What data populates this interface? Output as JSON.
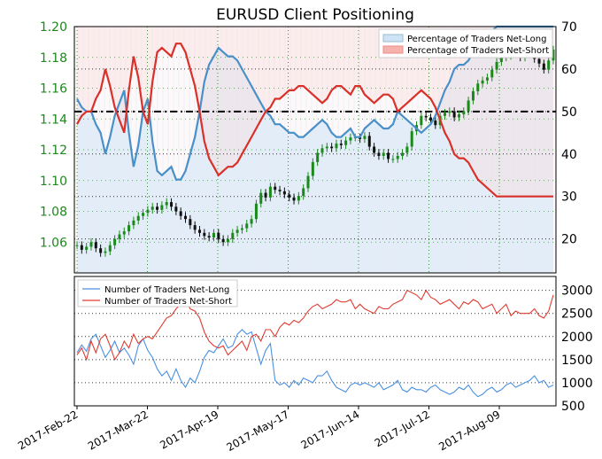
{
  "chart_data": [
    {
      "type": "line",
      "title": "EURUSD Client Positioning",
      "subtype": "candlestick price with sentiment percentage overlay",
      "x_ticks": [
        "2017-Feb-22",
        "2017-Mar-22",
        "2017-Apr-19",
        "2017-May-17",
        "2017-Jun-14",
        "2017-Jul-12",
        "2017-Aug-09"
      ],
      "price_axis": {
        "side": "left",
        "ylim": [
          1.04,
          1.2
        ],
        "ticks": [
          "1.06",
          "1.08",
          "1.10",
          "1.12",
          "1.14",
          "1.16",
          "1.18",
          "1.20"
        ]
      },
      "percent_axis": {
        "side": "right",
        "ylim": [
          12,
          70
        ],
        "ticks": [
          "20",
          "30",
          "40",
          "50",
          "60",
          "70"
        ]
      },
      "reference_line": 50,
      "legend": {
        "placement": "top-right",
        "entries": [
          "Percentage of Traders Net-Long",
          "Percentage of Traders Net-Short"
        ]
      },
      "price_close": [
        1.058,
        1.055,
        1.057,
        1.06,
        1.056,
        1.053,
        1.054,
        1.058,
        1.062,
        1.065,
        1.067,
        1.071,
        1.074,
        1.077,
        1.079,
        1.081,
        1.083,
        1.081,
        1.084,
        1.086,
        1.083,
        1.08,
        1.077,
        1.075,
        1.071,
        1.068,
        1.066,
        1.064,
        1.063,
        1.066,
        1.062,
        1.06,
        1.062,
        1.066,
        1.068,
        1.069,
        1.072,
        1.075,
        1.085,
        1.092,
        1.089,
        1.096,
        1.094,
        1.093,
        1.091,
        1.089,
        1.087,
        1.09,
        1.095,
        1.103,
        1.112,
        1.118,
        1.121,
        1.122,
        1.121,
        1.124,
        1.123,
        1.126,
        1.128,
        1.128,
        1.127,
        1.129,
        1.122,
        1.118,
        1.116,
        1.118,
        1.114,
        1.114,
        1.116,
        1.118,
        1.122,
        1.132,
        1.136,
        1.142,
        1.141,
        1.139,
        1.136,
        1.142,
        1.144,
        1.145,
        1.141,
        1.143,
        1.145,
        1.152,
        1.158,
        1.163,
        1.165,
        1.167,
        1.172,
        1.177,
        1.18,
        1.181,
        1.186,
        1.183,
        1.18,
        1.184,
        1.186,
        1.179,
        1.176,
        1.172,
        1.178,
        1.185
      ],
      "net_long_pct": [
        53,
        51,
        50,
        50,
        47,
        45,
        40,
        44,
        49,
        52,
        55,
        45,
        37,
        42,
        50,
        53,
        43,
        36,
        35,
        36,
        37,
        34,
        34,
        36,
        40,
        44,
        50,
        57,
        61,
        63,
        65,
        64,
        63,
        63,
        62,
        60,
        58,
        56,
        54,
        52,
        50,
        49,
        47,
        47,
        46,
        45,
        45,
        44,
        44,
        45,
        46,
        47,
        48,
        47,
        45,
        44,
        44,
        45,
        46,
        44,
        44,
        46,
        47,
        48,
        47,
        46,
        46,
        47,
        50,
        49,
        48,
        47,
        46,
        45,
        46,
        47,
        49,
        52,
        55,
        57,
        60,
        61,
        61,
        62,
        64,
        66,
        67,
        68,
        69,
        70,
        70,
        70,
        70,
        70,
        70,
        70,
        70,
        70,
        70,
        70,
        70,
        70
      ],
      "net_short_pct": [
        47,
        49,
        50,
        50,
        53,
        55,
        60,
        56,
        51,
        48,
        45,
        55,
        63,
        58,
        50,
        47,
        57,
        64,
        65,
        64,
        63,
        66,
        66,
        64,
        60,
        56,
        50,
        43,
        39,
        37,
        35,
        36,
        37,
        37,
        38,
        40,
        42,
        44,
        46,
        48,
        50,
        51,
        53,
        53,
        54,
        55,
        55,
        56,
        56,
        55,
        54,
        53,
        52,
        53,
        55,
        56,
        56,
        55,
        54,
        56,
        56,
        54,
        53,
        52,
        53,
        54,
        54,
        53,
        50,
        51,
        52,
        53,
        54,
        55,
        54,
        53,
        51,
        48,
        45,
        43,
        40,
        39,
        39,
        38,
        36,
        34,
        33,
        32,
        31,
        30,
        30,
        30,
        30,
        30,
        30,
        30,
        30,
        30,
        30,
        30,
        30,
        30
      ]
    },
    {
      "type": "line",
      "x_ticks": [
        "2017-Feb-22",
        "2017-Mar-22",
        "2017-Apr-19",
        "2017-May-17",
        "2017-Jun-14",
        "2017-Jul-12",
        "2017-Aug-09"
      ],
      "y_axis": {
        "side": "right",
        "ylim": [
          500,
          3300
        ],
        "ticks": [
          "500",
          "1000",
          "1500",
          "2000",
          "2500",
          "3000"
        ]
      },
      "legend": {
        "placement": "top-left",
        "entries": [
          "Number of Traders Net-Long",
          "Number of Traders Net-Short"
        ]
      },
      "series": [
        {
          "name": "Number of Traders Net-Long",
          "color": "#4a90e2",
          "values": [
            1650,
            1820,
            1680,
            1950,
            2050,
            1800,
            1550,
            1700,
            1900,
            1650,
            1750,
            1600,
            1400,
            1800,
            1950,
            1700,
            1550,
            1300,
            1150,
            1250,
            1050,
            1300,
            1050,
            900,
            1100,
            1000,
            1250,
            1550,
            1700,
            1650,
            1800,
            1950,
            1750,
            1800,
            2050,
            2150,
            2050,
            2100,
            1750,
            1400,
            1700,
            1850,
            1050,
            950,
            1000,
            900,
            1050,
            950,
            1100,
            1050,
            1000,
            1150,
            1150,
            1250,
            1050,
            900,
            850,
            800,
            950,
            1000,
            950,
            1000,
            950,
            900,
            1000,
            850,
            900,
            950,
            1050,
            850,
            800,
            900,
            850,
            850,
            800,
            900,
            950,
            850,
            800,
            750,
            800,
            900,
            850,
            950,
            800,
            700,
            750,
            850,
            900,
            800,
            850,
            950,
            1000,
            900,
            950,
            1000,
            1050,
            1150,
            1000,
            1050,
            900,
            950
          ]
        },
        {
          "name": "Number of Traders Net-Short",
          "color": "#e03c31",
          "values": [
            1600,
            1750,
            1500,
            1900,
            1650,
            1950,
            2050,
            1800,
            1500,
            1650,
            1900,
            1750,
            2050,
            1850,
            1950,
            2000,
            1950,
            2100,
            2250,
            2400,
            2450,
            2600,
            2700,
            2800,
            2600,
            2550,
            2400,
            2100,
            1900,
            1800,
            1750,
            1800,
            1600,
            1700,
            1800,
            1900,
            1700,
            2000,
            2050,
            1900,
            2150,
            2150,
            2000,
            2200,
            2300,
            2250,
            2350,
            2300,
            2400,
            2550,
            2650,
            2700,
            2600,
            2650,
            2700,
            2800,
            2750,
            2750,
            2800,
            2600,
            2700,
            2600,
            2550,
            2500,
            2650,
            2600,
            2600,
            2700,
            2750,
            2800,
            3000,
            2950,
            2900,
            2800,
            3000,
            2850,
            2800,
            2700,
            2750,
            2800,
            2700,
            2600,
            2750,
            2700,
            2800,
            2750,
            2600,
            2650,
            2700,
            2500,
            2600,
            2700,
            2450,
            2550,
            2500,
            2500,
            2500,
            2600,
            2450,
            2400,
            2550,
            2900
          ]
        }
      ]
    }
  ]
}
